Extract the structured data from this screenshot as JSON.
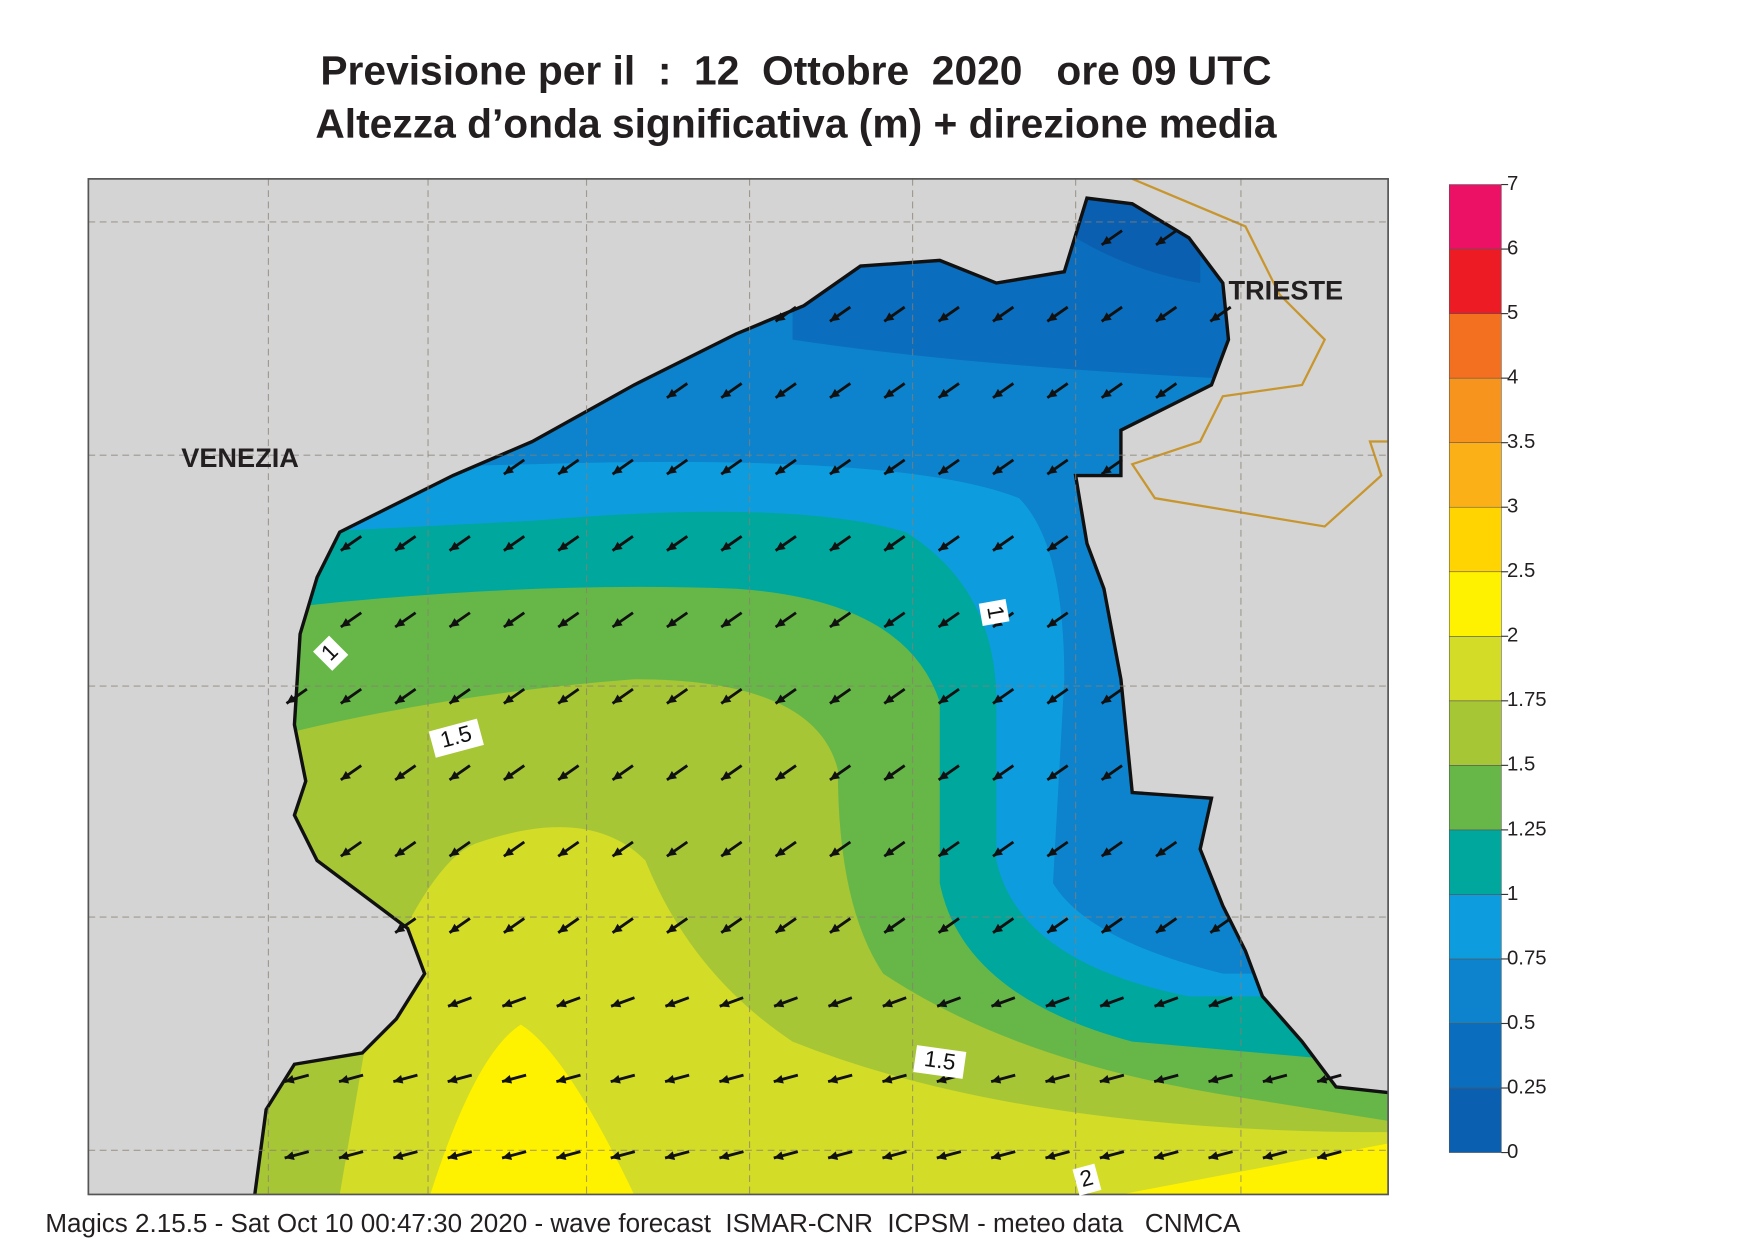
{
  "title": "Previsione per il  :  12  Ottobre  2020   ore 09 UTC",
  "subtitle": "Altezza d’onda significativa (m) + direzione media",
  "places": [
    "VENEZIA",
    "TRIESTE"
  ],
  "contour_labels": [
    "1",
    "1.5",
    "1",
    "1.5",
    "2"
  ],
  "colorbar": {
    "levels": [
      0,
      0.25,
      0.5,
      0.75,
      1,
      1.25,
      1.5,
      1.75,
      2,
      2.5,
      3,
      3.5,
      4,
      5,
      6,
      7
    ],
    "colors": [
      "#0b5fb0",
      "#0a6dbd",
      "#0c83cc",
      "#0d9ddf",
      "#00a79d",
      "#67b748",
      "#a6c636",
      "#d3dc27",
      "#fff200",
      "#ffd400",
      "#fbb017",
      "#f7941d",
      "#f37021",
      "#ed1c24",
      "#ec1164"
    ]
  },
  "footer": "Magics 2.15.5 - Sat Oct 10 00:47:30 2020 - wave forecast  ISMAR-CNR  ICPSM - meteo data   CNMCA"
}
